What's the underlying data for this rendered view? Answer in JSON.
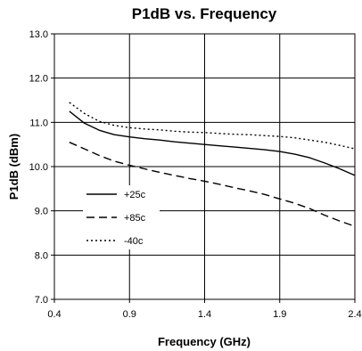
{
  "chart_data": {
    "type": "line",
    "title": "P1dB vs. Frequency",
    "xlabel": "Frequency (GHz)",
    "ylabel": "P1dB (dBm)",
    "xlim": [
      0.4,
      2.4
    ],
    "ylim": [
      7.0,
      13.0
    ],
    "x_ticks": [
      "0.4",
      "0.9",
      "1.4",
      "1.9",
      "2.4"
    ],
    "y_ticks": [
      "7.0",
      "8.0",
      "9.0",
      "10.0",
      "11.0",
      "12.0",
      "13.0"
    ],
    "grid": true,
    "legend_position": "left",
    "series": [
      {
        "name": "+25c",
        "style": "solid",
        "color": "#000000",
        "x": [
          0.5,
          0.6,
          0.7,
          0.8,
          0.9,
          1.0,
          1.1,
          1.2,
          1.3,
          1.4,
          1.5,
          1.6,
          1.7,
          1.8,
          1.9,
          2.0,
          2.1,
          2.2,
          2.3,
          2.4
        ],
        "y": [
          11.25,
          10.98,
          10.82,
          10.72,
          10.67,
          10.63,
          10.6,
          10.56,
          10.53,
          10.5,
          10.47,
          10.44,
          10.41,
          10.38,
          10.34,
          10.28,
          10.2,
          10.08,
          9.95,
          9.8
        ]
      },
      {
        "name": "+85c",
        "style": "dashed",
        "color": "#000000",
        "x": [
          0.5,
          0.6,
          0.7,
          0.8,
          0.9,
          1.0,
          1.1,
          1.2,
          1.3,
          1.4,
          1.5,
          1.6,
          1.7,
          1.8,
          1.9,
          2.0,
          2.1,
          2.2,
          2.3,
          2.4
        ],
        "y": [
          10.55,
          10.4,
          10.25,
          10.12,
          10.03,
          9.95,
          9.87,
          9.8,
          9.73,
          9.67,
          9.6,
          9.52,
          9.45,
          9.37,
          9.27,
          9.17,
          9.05,
          8.9,
          8.77,
          8.65
        ]
      },
      {
        "name": "-40c",
        "style": "dotted",
        "color": "#000000",
        "x": [
          0.5,
          0.6,
          0.7,
          0.8,
          0.9,
          1.0,
          1.1,
          1.2,
          1.3,
          1.4,
          1.5,
          1.6,
          1.7,
          1.8,
          1.9,
          2.0,
          2.1,
          2.2,
          2.3,
          2.4
        ],
        "y": [
          11.45,
          11.2,
          11.02,
          10.93,
          10.88,
          10.85,
          10.83,
          10.8,
          10.78,
          10.77,
          10.75,
          10.73,
          10.72,
          10.7,
          10.68,
          10.65,
          10.6,
          10.55,
          10.48,
          10.4
        ]
      }
    ]
  }
}
